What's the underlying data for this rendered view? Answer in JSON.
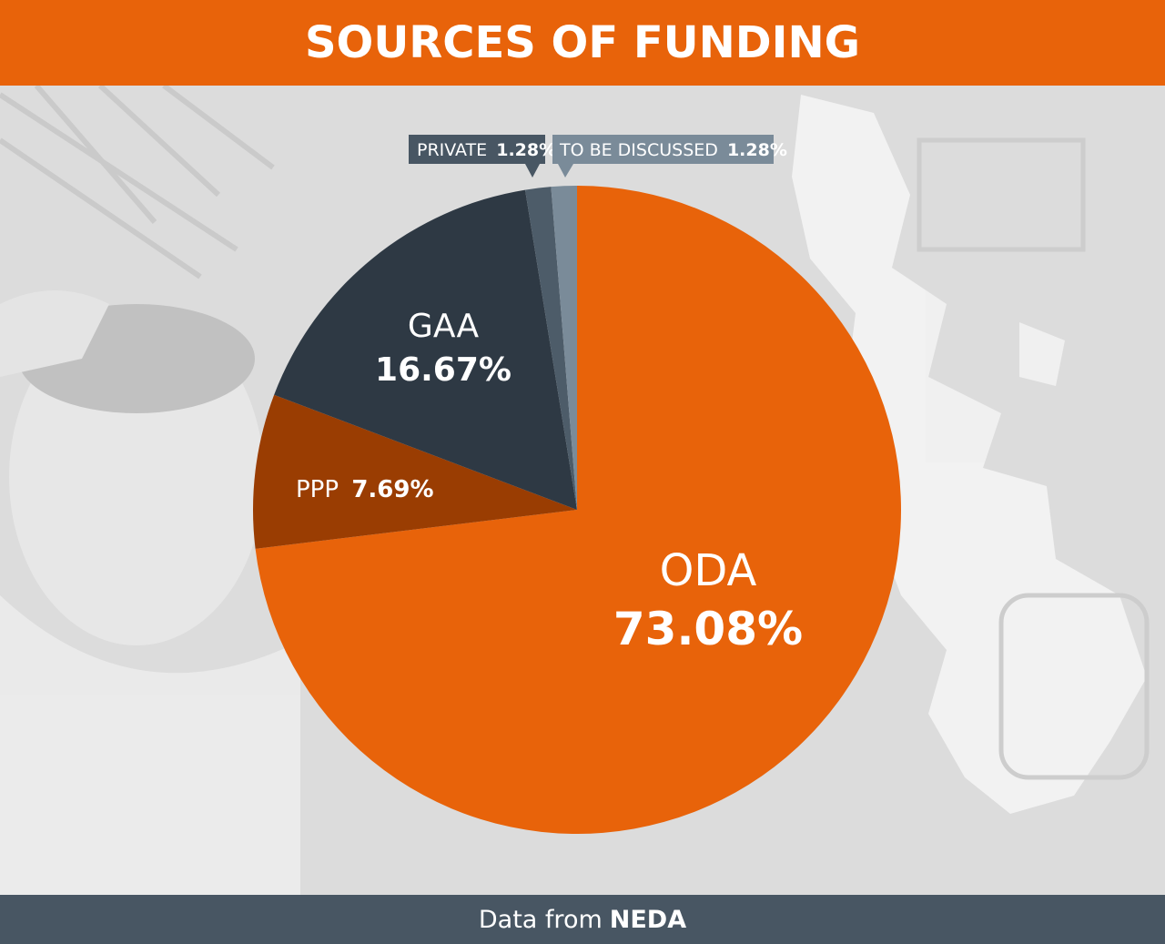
{
  "header": {
    "title": "SOURCES OF FUNDING"
  },
  "footer": {
    "prefix": "Data from",
    "source": "NEDA"
  },
  "colors": {
    "header_bg": "#e8630a",
    "footer_bg": "#485663",
    "oda": "#e8630a",
    "ppp": "#9a3d02",
    "gaa": "#2e3944",
    "private": "#4d5c69",
    "tbd": "#7a8b99"
  },
  "chart_data": {
    "type": "pie",
    "title": "SOURCES OF FUNDING",
    "slices": [
      {
        "name": "ODA",
        "value": 73.08,
        "label": "73.08%"
      },
      {
        "name": "PPP",
        "value": 7.69,
        "label": "7.69%"
      },
      {
        "name": "GAA",
        "value": 16.67,
        "label": "16.67%"
      },
      {
        "name": "PRIVATE",
        "value": 1.28,
        "label": "1.28%"
      },
      {
        "name": "TO BE DISCUSSED",
        "value": 1.28,
        "label": "1.28%"
      }
    ],
    "start": "12 o'clock",
    "direction": "clockwise"
  }
}
